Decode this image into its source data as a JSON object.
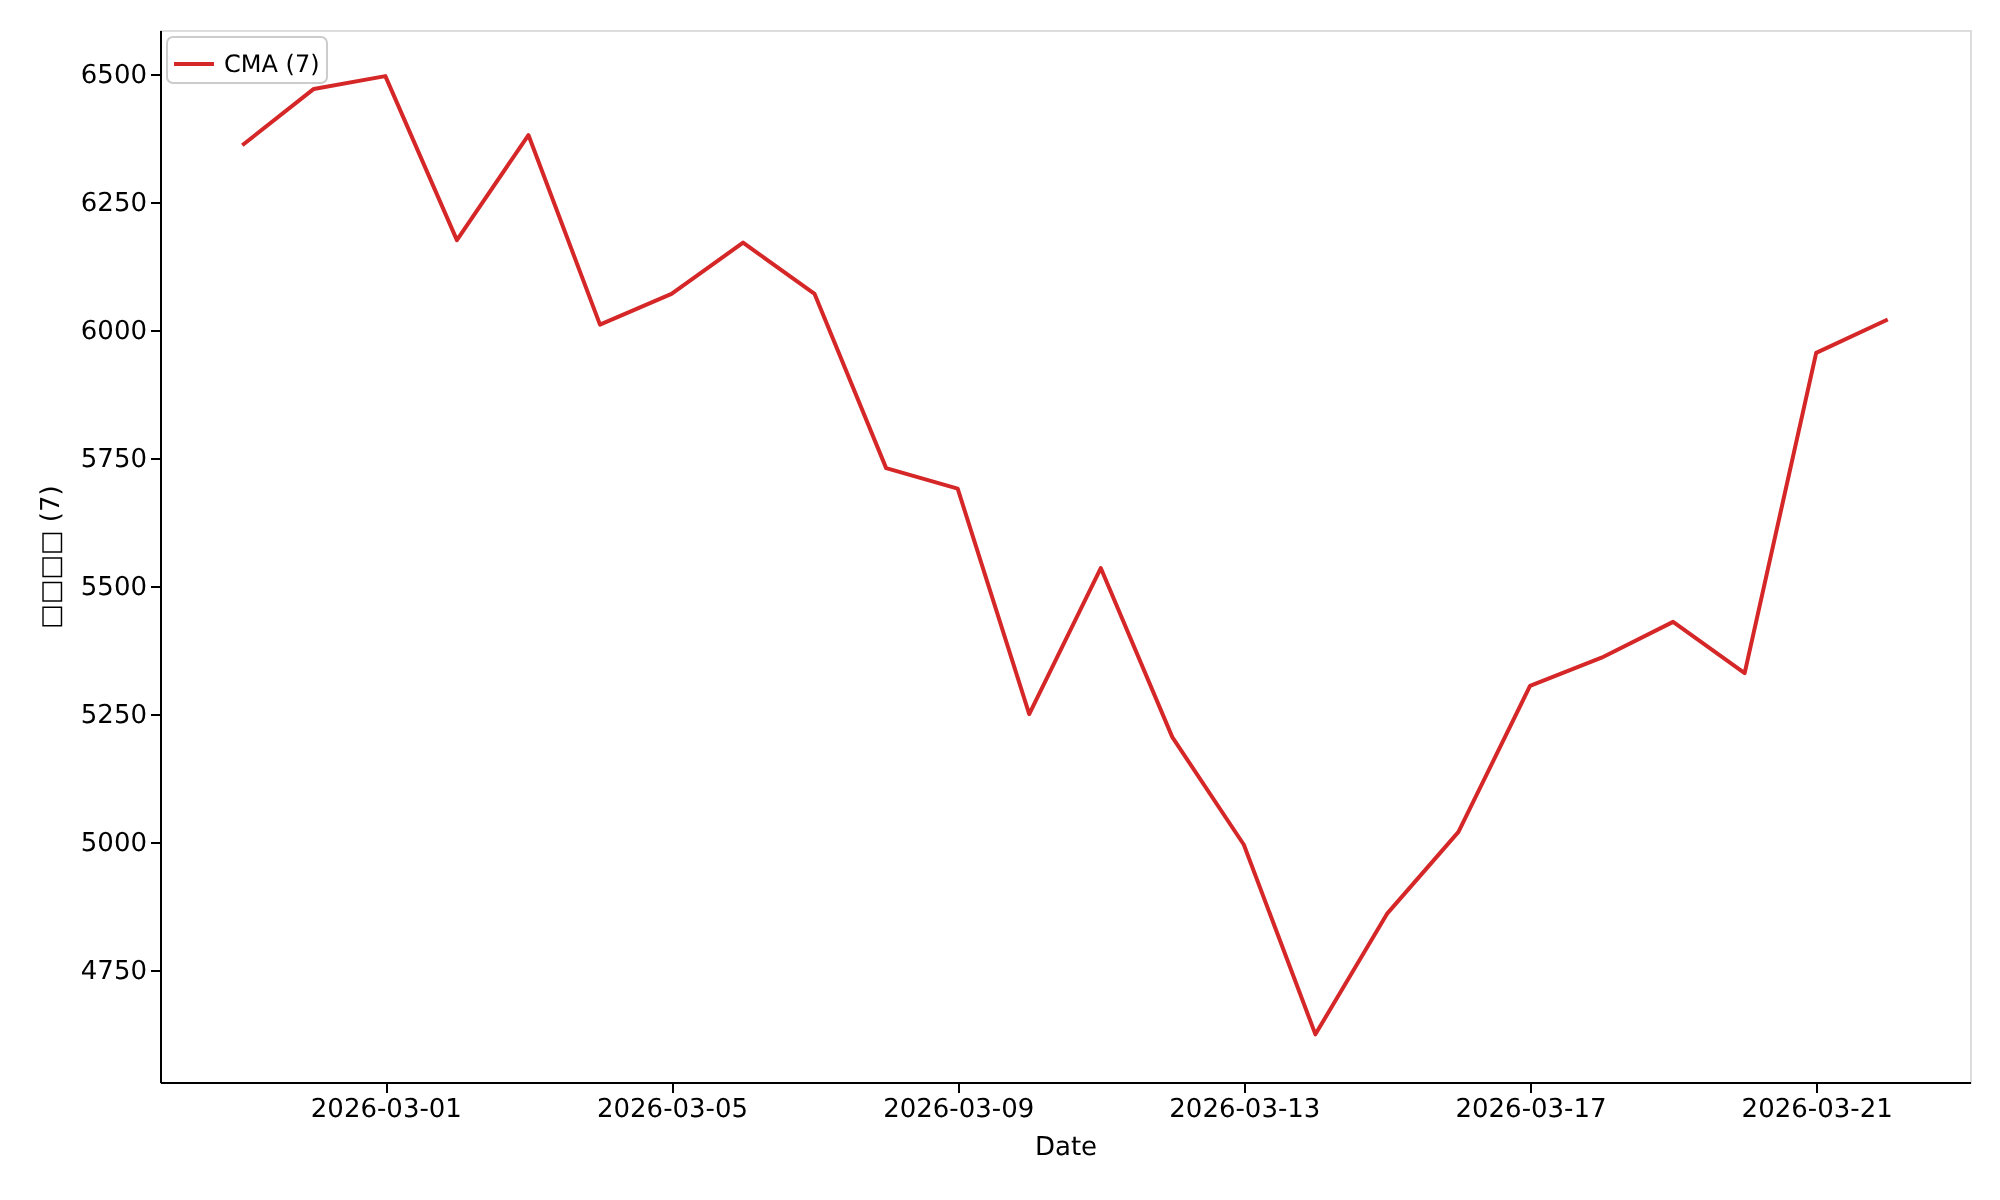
{
  "chart_data": {
    "type": "line",
    "xlabel": "Date",
    "ylabel": "□□□□ (7)",
    "x": [
      "2026-02-27",
      "2026-02-28",
      "2026-03-01",
      "2026-03-02",
      "2026-03-03",
      "2026-03-04",
      "2026-03-05",
      "2026-03-06",
      "2026-03-07",
      "2026-03-08",
      "2026-03-09",
      "2026-03-10",
      "2026-03-11",
      "2026-03-12",
      "2026-03-13",
      "2026-03-14",
      "2026-03-15",
      "2026-03-16",
      "2026-03-17",
      "2026-03-18",
      "2026-03-19",
      "2026-03-20",
      "2026-03-21",
      "2026-03-22"
    ],
    "series": [
      {
        "name": "CMA (7)",
        "color": "#d62728",
        "values": [
          6360,
          6470,
          6495,
          6175,
          6380,
          6010,
          6070,
          6170,
          6070,
          5730,
          5690,
          5250,
          5535,
          5205,
          4995,
          4625,
          4860,
          5020,
          5305,
          5360,
          5430,
          5330,
          5955,
          6020
        ]
      }
    ],
    "xlim": [
      "2026-02-25T20:24",
      "2026-03-23T03:36"
    ],
    "xticks": [
      "2026-03-01",
      "2026-03-05",
      "2026-03-09",
      "2026-03-13",
      "2026-03-17",
      "2026-03-21"
    ],
    "ylim": [
      4532,
      6585
    ],
    "yticks": [
      4750,
      5000,
      5250,
      5500,
      5750,
      6000,
      6250,
      6500
    ],
    "legend": "top left",
    "line_style": "solid",
    "grid": false
  }
}
